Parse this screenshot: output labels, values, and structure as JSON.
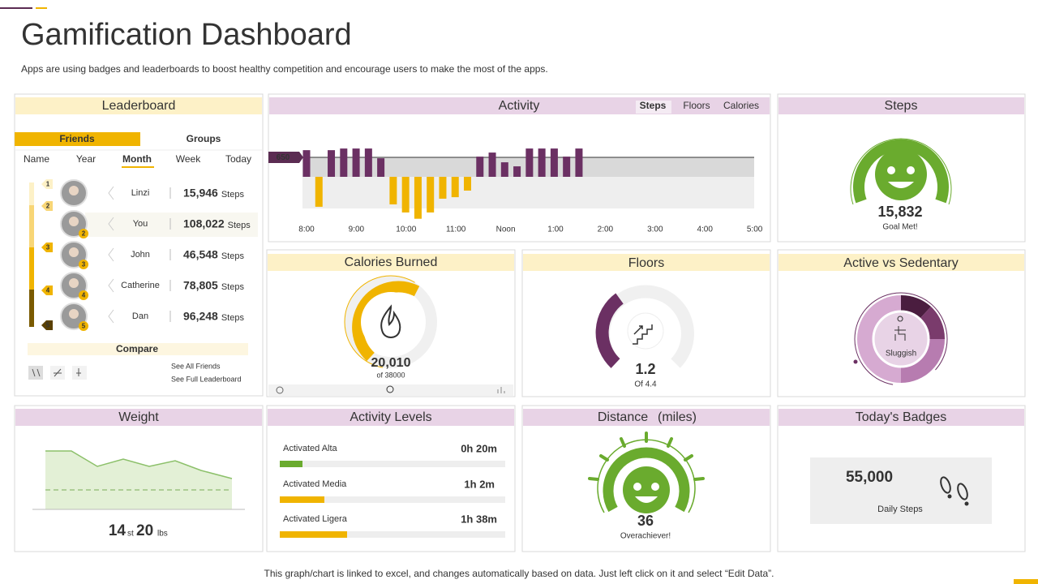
{
  "header": {
    "title": "Gamification Dashboard",
    "subtitle": "Apps are using badges and leaderboards  to boost healthy competition and encourage  users to make the most of the apps."
  },
  "leaderboard": {
    "title": "Leaderboard",
    "tabs": [
      "Friends",
      "Groups"
    ],
    "periods": [
      "Name",
      "Year",
      "Month",
      "Week",
      "Today"
    ],
    "rows": [
      {
        "rank": "1",
        "name": "Linzi",
        "steps": "15,946",
        "unit": "Steps"
      },
      {
        "rank": "2",
        "name": "You",
        "steps": "108,022",
        "unit": "Steps"
      },
      {
        "rank": "3",
        "name": "John",
        "steps": "46,548",
        "unit": "Steps"
      },
      {
        "rank": "4",
        "name": "Catherine",
        "steps": "78,805",
        "unit": "Steps"
      },
      {
        "rank": "5",
        "name": "Dan",
        "steps": "96,248",
        "unit": "Steps"
      }
    ],
    "compare": "Compare",
    "links": [
      "See All Friends",
      "See Full Leaderboard"
    ]
  },
  "activity": {
    "title": "Activity",
    "tabs": [
      "Steps",
      "Floors",
      "Calories"
    ],
    "reference": 650,
    "values": [
      890,
      -1000,
      890,
      945,
      945,
      945,
      620,
      -920,
      -1190,
      -1400,
      -1190,
      -730,
      -680,
      -460,
      675,
      810,
      485,
      350,
      945,
      945,
      945,
      675,
      945
    ],
    "x_labels": [
      "8:00",
      "9:00",
      "10:00",
      "11:00",
      "Noon",
      "1:00",
      "2:00",
      "3:00",
      "4:00",
      "5:00"
    ]
  },
  "steps": {
    "title": "Steps",
    "value": "15,832",
    "caption": "Goal Met!"
  },
  "calories": {
    "title": "Calories Burned",
    "value": "20,010",
    "caption": "of 38000"
  },
  "floors": {
    "title": "Floors",
    "value": "1.2",
    "caption": "Of 4.4"
  },
  "active_vs_sedentary": {
    "title": "Active vs Sedentary",
    "label": "Sluggish"
  },
  "weight": {
    "title": "Weight",
    "stones": "14",
    "stones_unit": "st",
    "pounds": "20",
    "pounds_unit": "lbs"
  },
  "activity_levels": {
    "title": "Activity Levels",
    "rows": [
      {
        "label": "Activated Alta",
        "value": "0h 20m"
      },
      {
        "label": "Activated Media",
        "value": "1h 2m"
      },
      {
        "label": "Activated Ligera",
        "value": "1h 38m"
      }
    ]
  },
  "distance": {
    "title": "Distance",
    "unit": "(miles)",
    "value": "36",
    "caption": "Overachiever!"
  },
  "badges": {
    "title": "Today's Badges",
    "value": "55,000",
    "caption": "Daily Steps"
  },
  "footer": "This graph/chart is linked to excel,  and changes automatically based on data. Just left click on it and select “Edit Data”."
}
